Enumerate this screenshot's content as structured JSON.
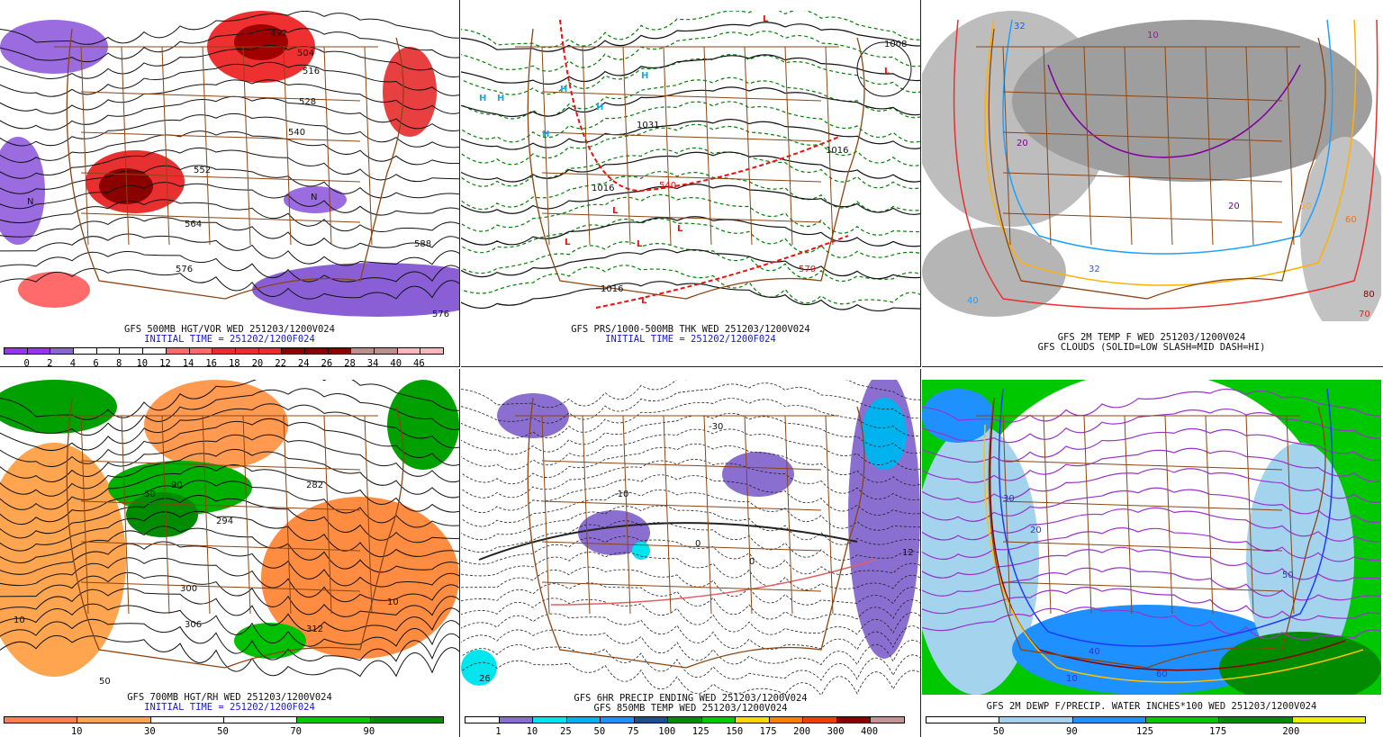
{
  "panels": [
    {
      "id": "500mb",
      "title": "GFS 500MB HGT/VOR WED 251203/1200V024",
      "subtitle": "INITIAL TIME = 251202/1200F024",
      "colorbar": {
        "colors": [
          "#9933ee",
          "#9933ee",
          "#8866cc",
          "#ffffff",
          "#ffffff",
          "#ffffff",
          "#ffffff",
          "#ff6a6a",
          "#ff6a6a",
          "#ee2a2a",
          "#ee2a2a",
          "#ee2a2a",
          "#8b0000",
          "#8b0000",
          "#8b0000",
          "#bc8f8f",
          "#bc8f8f",
          "#ffb6c1",
          "#ffb6c1"
        ],
        "ticks": [
          "0",
          "2",
          "4",
          "6",
          "8",
          "10",
          "12",
          "14",
          "16",
          "18",
          "20",
          "22",
          "24",
          "26",
          "28",
          "34",
          "40",
          "46"
        ]
      },
      "map_labels": [
        "492",
        "504",
        "516",
        "528",
        "540",
        "552",
        "564",
        "576",
        "588",
        "576",
        "N",
        "N"
      ]
    },
    {
      "id": "thk",
      "title": "GFS PRS/1000-500MB THK WED 251203/1200V024",
      "subtitle": "INITIAL TIME = 251202/1200F024",
      "map_labels": [
        "H",
        "H",
        "H",
        "H",
        "H",
        "H",
        "L",
        "L",
        "L",
        "L",
        "L",
        "L",
        "L",
        "1016",
        "1031",
        "1016",
        "540",
        "570",
        "1016",
        "1008"
      ]
    },
    {
      "id": "2mtemp",
      "title": "GFS 2M TEMP F WED 251203/1200V024",
      "subtitle": "GFS CLOUDS (SOLID=LOW SLASH=MID DASH=HI)",
      "map_labels": [
        "32",
        "20",
        "10",
        "32",
        "20",
        "50",
        "60",
        "70",
        "80",
        "40"
      ]
    },
    {
      "id": "700mb",
      "title": "GFS 700MB HGT/RH WED 251203/1200V024",
      "subtitle": "INITIAL TIME = 251202/1200F024",
      "colorbar": {
        "colors": [
          "#ff7f50",
          "#ffa54f",
          "#ffffff",
          "#ffffff",
          "#00c800",
          "#008b00"
        ],
        "ticks": [
          "10",
          "30",
          "50",
          "70",
          "90"
        ]
      },
      "map_labels": [
        "10",
        "50",
        "90",
        "300",
        "306",
        "312",
        "294",
        "282",
        "50",
        "10"
      ]
    },
    {
      "id": "precip",
      "title": "GFS 6HR PRECIP ENDING WED 251203/1200V024",
      "subtitle": "GFS 850MB TEMP WED 251203/1200V024",
      "colorbar": {
        "colors": [
          "#ffffff",
          "#8a6fd0",
          "#00e5ee",
          "#00b2ee",
          "#1e90ff",
          "#1c4f8b",
          "#008b00",
          "#00cd00",
          "#ffd700",
          "#ff8000",
          "#ee4000",
          "#8b0000",
          "#c59595"
        ],
        "ticks": [
          "1",
          "10",
          "25",
          "50",
          "75",
          "100",
          "125",
          "150",
          "175",
          "200",
          "300",
          "400"
        ]
      },
      "map_labels": [
        "-30",
        "-10",
        "0",
        "12",
        "26",
        "0"
      ]
    },
    {
      "id": "dewp",
      "title": "GFS 2M DEWP F/PRECIP. WATER INCHES*100 WED 251203/1200V024",
      "subtitle": "",
      "colorbar": {
        "colors": [
          "#ffffff",
          "#a4d3ee",
          "#1e90ff",
          "#00c800",
          "#008b00",
          "#eeee00"
        ],
        "ticks": [
          "50",
          "90",
          "125",
          "175",
          "200"
        ]
      },
      "map_labels": [
        "20",
        "30",
        "40",
        "50",
        "60",
        "10"
      ]
    }
  ]
}
